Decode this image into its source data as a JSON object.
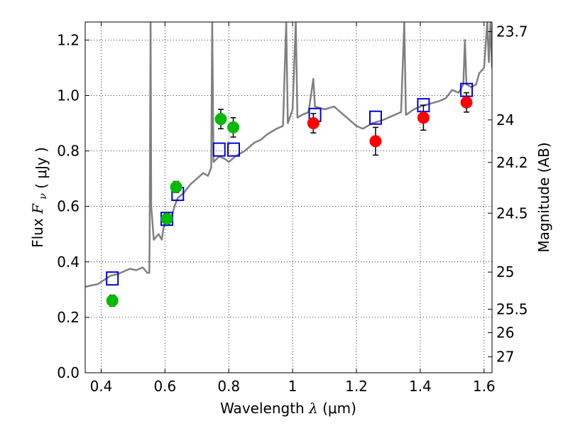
{
  "chart_data": {
    "type": "scatter",
    "xlabel_text": "Wavelength",
    "xlabel_symbol": "λ",
    "xlabel_unit": "(μm)",
    "ylabel_text": "Flux",
    "ylabel_symbol": "F",
    "ylabel_subscript": "ν",
    "ylabel_unit": "( μJy )",
    "y2label": "Magnitude (AB)",
    "xlim": [
      0.35,
      1.625
    ],
    "ylim": [
      0.0,
      1.265
    ],
    "grid": true,
    "x_ticks": [
      0.4,
      0.6,
      0.8,
      1.0,
      1.2,
      1.4,
      1.6
    ],
    "x_tick_labels": [
      "0.4",
      "0.6",
      "0.8",
      "1",
      "1.2",
      "1.4",
      "1.6"
    ],
    "y_ticks": [
      0.0,
      0.2,
      0.4,
      0.6,
      0.8,
      1.0,
      1.2
    ],
    "y_tick_labels": [
      "0.0",
      "0.2",
      "0.4",
      "0.6",
      "0.8",
      "1.0",
      "1.2"
    ],
    "y2_ticks": [
      {
        "label": "23.7",
        "flux": 1.2303
      },
      {
        "label": "24",
        "flux": 0.912
      },
      {
        "label": "24.2",
        "flux": 0.7586
      },
      {
        "label": "24.5",
        "flux": 0.5754
      },
      {
        "label": "25",
        "flux": 0.3631
      },
      {
        "label": "25.5",
        "flux": 0.2291
      },
      {
        "label": "26",
        "flux": 0.1445
      },
      {
        "label": "27",
        "flux": 0.0575
      }
    ],
    "series": [
      {
        "marker": "circle",
        "color": "#00bb00",
        "points": [
          {
            "x": 0.435,
            "y": 0.26,
            "err": 0.02
          },
          {
            "x": 0.606,
            "y": 0.555,
            "err": 0.02
          },
          {
            "x": 0.635,
            "y": 0.67,
            "err": 0.02
          },
          {
            "x": 0.775,
            "y": 0.915,
            "err": 0.035
          },
          {
            "x": 0.814,
            "y": 0.885,
            "err": 0.035
          }
        ]
      },
      {
        "marker": "circle",
        "color": "#ff0000",
        "points": [
          {
            "x": 1.065,
            "y": 0.9,
            "err": 0.035
          },
          {
            "x": 1.26,
            "y": 0.835,
            "err": 0.05
          },
          {
            "x": 1.41,
            "y": 0.92,
            "err": 0.045
          },
          {
            "x": 1.545,
            "y": 0.975,
            "err": 0.035
          }
        ]
      },
      {
        "marker": "open-square",
        "color": "#0000dd",
        "points": [
          {
            "x": 0.435,
            "y": 0.34
          },
          {
            "x": 0.606,
            "y": 0.555
          },
          {
            "x": 0.64,
            "y": 0.645
          },
          {
            "x": 0.77,
            "y": 0.805
          },
          {
            "x": 0.815,
            "y": 0.805
          },
          {
            "x": 1.07,
            "y": 0.93
          },
          {
            "x": 1.26,
            "y": 0.92
          },
          {
            "x": 1.41,
            "y": 0.965
          },
          {
            "x": 1.545,
            "y": 1.02
          }
        ]
      },
      {
        "marker": "line",
        "color": "#808080",
        "points": [
          {
            "x": 0.35,
            "y": 0.31
          },
          {
            "x": 0.37,
            "y": 0.315
          },
          {
            "x": 0.39,
            "y": 0.32
          },
          {
            "x": 0.41,
            "y": 0.335
          },
          {
            "x": 0.43,
            "y": 0.35
          },
          {
            "x": 0.45,
            "y": 0.355
          },
          {
            "x": 0.47,
            "y": 0.365
          },
          {
            "x": 0.49,
            "y": 0.375
          },
          {
            "x": 0.51,
            "y": 0.37
          },
          {
            "x": 0.53,
            "y": 0.38
          },
          {
            "x": 0.545,
            "y": 0.36
          },
          {
            "x": 0.551,
            "y": 0.36
          },
          {
            "x": 0.552,
            "y": 0.5
          },
          {
            "x": 0.555,
            "y": 1.265
          },
          {
            "x": 0.557,
            "y": 0.6
          },
          {
            "x": 0.565,
            "y": 0.48
          },
          {
            "x": 0.58,
            "y": 0.5
          },
          {
            "x": 0.59,
            "y": 0.48
          },
          {
            "x": 0.595,
            "y": 0.52
          },
          {
            "x": 0.6,
            "y": 0.54
          },
          {
            "x": 0.62,
            "y": 0.56
          },
          {
            "x": 0.63,
            "y": 0.6
          },
          {
            "x": 0.64,
            "y": 0.63
          },
          {
            "x": 0.66,
            "y": 0.65
          },
          {
            "x": 0.68,
            "y": 0.68
          },
          {
            "x": 0.7,
            "y": 0.7
          },
          {
            "x": 0.72,
            "y": 0.72
          },
          {
            "x": 0.735,
            "y": 0.71
          },
          {
            "x": 0.745,
            "y": 0.74
          },
          {
            "x": 0.748,
            "y": 1.265
          },
          {
            "x": 0.752,
            "y": 0.76
          },
          {
            "x": 0.77,
            "y": 0.78
          },
          {
            "x": 0.79,
            "y": 0.77
          },
          {
            "x": 0.8,
            "y": 0.76
          },
          {
            "x": 0.82,
            "y": 0.78
          },
          {
            "x": 0.85,
            "y": 0.8
          },
          {
            "x": 0.88,
            "y": 0.83
          },
          {
            "x": 0.9,
            "y": 0.84
          },
          {
            "x": 0.92,
            "y": 0.86
          },
          {
            "x": 0.95,
            "y": 0.88
          },
          {
            "x": 0.97,
            "y": 0.89
          },
          {
            "x": 0.98,
            "y": 1.265
          },
          {
            "x": 0.985,
            "y": 0.9
          },
          {
            "x": 1.0,
            "y": 0.95
          },
          {
            "x": 1.01,
            "y": 1.265
          },
          {
            "x": 1.015,
            "y": 0.92
          },
          {
            "x": 1.03,
            "y": 0.93
          },
          {
            "x": 1.05,
            "y": 0.94
          },
          {
            "x": 1.065,
            "y": 1.06
          },
          {
            "x": 1.07,
            "y": 0.96
          },
          {
            "x": 1.1,
            "y": 0.95
          },
          {
            "x": 1.13,
            "y": 0.96
          },
          {
            "x": 1.16,
            "y": 0.93
          },
          {
            "x": 1.18,
            "y": 0.91
          },
          {
            "x": 1.2,
            "y": 0.89
          },
          {
            "x": 1.22,
            "y": 0.88
          },
          {
            "x": 1.25,
            "y": 0.9
          },
          {
            "x": 1.28,
            "y": 0.91
          },
          {
            "x": 1.3,
            "y": 0.92
          },
          {
            "x": 1.32,
            "y": 0.93
          },
          {
            "x": 1.34,
            "y": 0.94
          },
          {
            "x": 1.35,
            "y": 1.265
          },
          {
            "x": 1.355,
            "y": 0.93
          },
          {
            "x": 1.38,
            "y": 0.95
          },
          {
            "x": 1.4,
            "y": 0.96
          },
          {
            "x": 1.43,
            "y": 0.97
          },
          {
            "x": 1.46,
            "y": 0.98
          },
          {
            "x": 1.48,
            "y": 0.99
          },
          {
            "x": 1.5,
            "y": 1.02
          },
          {
            "x": 1.52,
            "y": 1.01
          },
          {
            "x": 1.535,
            "y": 1.04
          },
          {
            "x": 1.54,
            "y": 1.2
          },
          {
            "x": 1.545,
            "y": 1.04
          },
          {
            "x": 1.56,
            "y": 1.03
          },
          {
            "x": 1.575,
            "y": 1.04
          },
          {
            "x": 1.585,
            "y": 1.08
          },
          {
            "x": 1.6,
            "y": 1.1
          },
          {
            "x": 1.61,
            "y": 1.265
          },
          {
            "x": 1.615,
            "y": 1.12
          },
          {
            "x": 1.62,
            "y": 1.265
          },
          {
            "x": 1.625,
            "y": 1.1
          }
        ]
      }
    ]
  }
}
